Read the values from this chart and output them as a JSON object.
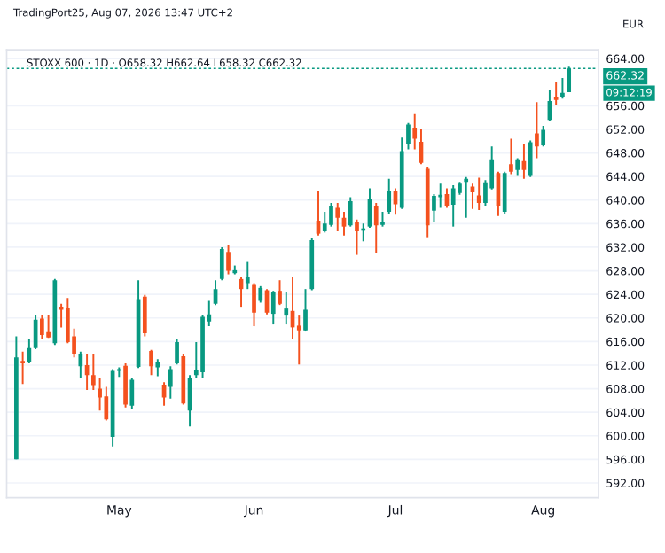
{
  "chart_data": {
    "type": "candlestick",
    "title": "STOXX 600 · 1D · O658.32 H662.64 L658.32 C662.32",
    "subtitle": "TradingPort25, Aug 07, 2026 13:47 UTC+2",
    "annotations": [
      "EUR",
      "09:12:19"
    ],
    "categories": [
      null,
      null,
      null,
      null,
      null,
      null,
      null,
      null,
      null,
      null,
      null,
      null,
      null,
      null,
      null,
      null,
      "May",
      null,
      null,
      null,
      null,
      null,
      null,
      null,
      null,
      null,
      null,
      null,
      null,
      null,
      null,
      null,
      null,
      null,
      null,
      null,
      null,
      "Jun",
      null,
      null,
      null,
      null,
      null,
      null,
      null,
      null,
      null,
      null,
      null,
      null,
      null,
      null,
      null,
      null,
      null,
      null,
      null,
      null,
      null,
      "Jul",
      null,
      null,
      null,
      null,
      null,
      null,
      null,
      null,
      null,
      null,
      null,
      null,
      null,
      null,
      null,
      null,
      null,
      null,
      null,
      null,
      null,
      null,
      "Aug",
      null,
      null,
      null,
      null
    ],
    "ohlc": [
      [
        596.0,
        616.9,
        596.0,
        613.3
      ],
      [
        612.7,
        614.3,
        608.8,
        612.3
      ],
      [
        612.5,
        616.4,
        612.3,
        614.9
      ],
      [
        614.9,
        620.4,
        614.7,
        619.7
      ],
      [
        619.9,
        620.4,
        616.4,
        617.1
      ],
      [
        617.6,
        620.4,
        616.6,
        616.7
      ],
      [
        615.7,
        626.6,
        615.4,
        626.4
      ],
      [
        621.9,
        622.4,
        618.4,
        621.4
      ],
      [
        621.6,
        623.4,
        615.7,
        615.9
      ],
      [
        616.9,
        618.2,
        613.3,
        613.9
      ],
      [
        611.8,
        614.3,
        609.8,
        613.9
      ],
      [
        612.0,
        613.9,
        607.8,
        610.3
      ],
      [
        610.3,
        613.9,
        607.8,
        608.6
      ],
      [
        608.0,
        609.8,
        604.3,
        606.5
      ],
      [
        606.7,
        608.3,
        602.6,
        602.8
      ],
      [
        599.8,
        611.3,
        598.2,
        611.0
      ],
      [
        611.0,
        611.6,
        610.0,
        611.3
      ],
      [
        611.9,
        612.3,
        604.8,
        605.3
      ],
      [
        605.1,
        609.8,
        604.6,
        609.5
      ],
      [
        611.7,
        626.4,
        611.5,
        623.2
      ],
      [
        623.6,
        623.9,
        616.9,
        617.4
      ],
      [
        614.4,
        614.6,
        610.3,
        611.8
      ],
      [
        611.6,
        613.0,
        610.1,
        612.6
      ],
      [
        608.7,
        609.1,
        605.1,
        606.5
      ],
      [
        608.3,
        611.8,
        606.3,
        611.3
      ],
      [
        612.3,
        616.4,
        612.1,
        615.9
      ],
      [
        613.5,
        613.9,
        605.3,
        605.5
      ],
      [
        604.3,
        610.3,
        601.6,
        609.8
      ],
      [
        610.3,
        615.9,
        609.8,
        611.1
      ],
      [
        610.8,
        620.4,
        609.8,
        620.2
      ],
      [
        619.4,
        622.9,
        618.6,
        620.6
      ],
      [
        622.4,
        626.4,
        622.2,
        624.9
      ],
      [
        626.6,
        632.0,
        626.4,
        631.7
      ],
      [
        631.2,
        632.3,
        627.4,
        628.0
      ],
      [
        627.6,
        628.9,
        627.4,
        628.1
      ],
      [
        626.6,
        626.9,
        621.9,
        624.9
      ],
      [
        625.9,
        629.5,
        624.9,
        626.9
      ],
      [
        625.6,
        625.9,
        618.6,
        620.9
      ],
      [
        622.9,
        625.4,
        622.6,
        625.1
      ],
      [
        624.7,
        624.9,
        620.6,
        620.9
      ],
      [
        620.7,
        624.6,
        618.9,
        624.4
      ],
      [
        624.6,
        626.4,
        622.2,
        622.4
      ],
      [
        620.4,
        624.4,
        618.9,
        621.6
      ],
      [
        621.2,
        626.9,
        616.4,
        618.4
      ],
      [
        618.7,
        620.4,
        612.1,
        617.9
      ],
      [
        617.9,
        624.9,
        617.7,
        621.4
      ],
      [
        624.9,
        633.5,
        624.7,
        633.2
      ],
      [
        636.5,
        641.5,
        634.0,
        634.3
      ],
      [
        634.7,
        638.0,
        634.5,
        636.0
      ],
      [
        635.8,
        639.5,
        635.5,
        639.0
      ],
      [
        638.7,
        639.5,
        634.7,
        637.0
      ],
      [
        637.0,
        638.0,
        634.0,
        635.5
      ],
      [
        635.7,
        640.5,
        635.5,
        639.8
      ],
      [
        636.2,
        636.7,
        630.7,
        634.7
      ],
      [
        634.8,
        636.0,
        633.0,
        635.2
      ],
      [
        635.5,
        642.0,
        635.3,
        640.2
      ],
      [
        639.0,
        639.5,
        631.0,
        635.7
      ],
      [
        635.8,
        638.0,
        635.5,
        636.2
      ],
      [
        638.0,
        643.6,
        637.7,
        641.5
      ],
      [
        641.5,
        642.0,
        637.5,
        639.3
      ],
      [
        638.7,
        650.6,
        638.5,
        648.3
      ],
      [
        649.6,
        653.1,
        648.6,
        652.8
      ],
      [
        652.3,
        654.6,
        648.6,
        650.4
      ],
      [
        649.9,
        652.1,
        646.1,
        646.3
      ],
      [
        645.3,
        645.6,
        633.7,
        635.7
      ],
      [
        638.2,
        641.0,
        636.3,
        640.7
      ],
      [
        640.5,
        642.8,
        638.7,
        640.9
      ],
      [
        641.0,
        642.0,
        638.7,
        639.0
      ],
      [
        639.2,
        642.5,
        635.5,
        642.0
      ],
      [
        641.2,
        643.1,
        640.9,
        642.8
      ],
      [
        643.1,
        643.9,
        637.0,
        643.6
      ],
      [
        642.3,
        642.8,
        638.5,
        641.3
      ],
      [
        640.8,
        643.8,
        638.3,
        639.5
      ],
      [
        639.5,
        643.4,
        639.0,
        643.0
      ],
      [
        642.0,
        649.1,
        641.8,
        646.9
      ],
      [
        644.6,
        644.8,
        637.3,
        639.0
      ],
      [
        638.0,
        644.8,
        637.7,
        644.6
      ],
      [
        646.1,
        650.4,
        644.4,
        644.8
      ],
      [
        645.1,
        647.1,
        644.1,
        646.9
      ],
      [
        646.6,
        649.6,
        643.6,
        645.1
      ],
      [
        644.1,
        650.1,
        643.9,
        649.8
      ],
      [
        651.3,
        656.6,
        647.1,
        649.1
      ],
      [
        649.3,
        652.6,
        649.1,
        651.9
      ],
      [
        653.6,
        658.7,
        653.4,
        656.8
      ],
      [
        657.5,
        660.0,
        656.1,
        657.0
      ],
      [
        657.4,
        660.7,
        657.2,
        658.2
      ],
      [
        658.32,
        662.64,
        658.32,
        662.32
      ]
    ],
    "colors": [
      "#089981",
      "#f4511e",
      "#089981",
      "#089981",
      "#f4511e",
      "#f4511e",
      "#089981",
      "#f4511e",
      "#f4511e",
      "#f4511e",
      "#089981",
      "#f4511e",
      "#f4511e",
      "#f4511e",
      "#f4511e",
      "#089981",
      "#089981",
      "#f4511e",
      "#089981",
      "#089981",
      "#f4511e",
      "#f4511e",
      "#089981",
      "#f4511e",
      "#089981",
      "#089981",
      "#f4511e",
      "#089981",
      "#089981",
      "#089981",
      "#089981",
      "#089981",
      "#089981",
      "#f4511e",
      "#089981",
      "#f4511e",
      "#089981",
      "#f4511e",
      "#089981",
      "#f4511e",
      "#089981",
      "#f4511e",
      "#089981",
      "#f4511e",
      "#f4511e",
      "#089981",
      "#089981",
      "#f4511e",
      "#089981",
      "#089981",
      "#f4511e",
      "#f4511e",
      "#089981",
      "#f4511e",
      "#089981",
      "#089981",
      "#f4511e",
      "#089981",
      "#089981",
      "#f4511e",
      "#089981",
      "#089981",
      "#f4511e",
      "#f4511e",
      "#f4511e",
      "#089981",
      "#089981",
      "#f4511e",
      "#089981",
      "#089981",
      "#089981",
      "#f4511e",
      "#f4511e",
      "#089981",
      "#089981",
      "#f4511e",
      "#089981",
      "#f4511e",
      "#089981",
      "#f4511e",
      "#089981",
      "#f4511e",
      "#089981",
      "#089981",
      "#f4511e",
      "#089981",
      "#089981"
    ],
    "ylim": [
      589.5,
      665.5
    ],
    "yticks": [
      {
        "value": 592,
        "label": "592.00"
      },
      {
        "value": 596,
        "label": "596.00"
      },
      {
        "value": 600,
        "label": "600.00"
      },
      {
        "value": 604,
        "label": "604.00"
      },
      {
        "value": 608,
        "label": "608.00"
      },
      {
        "value": 612,
        "label": "612.00"
      },
      {
        "value": 616,
        "label": "616.00"
      },
      {
        "value": 620,
        "label": "620.00"
      },
      {
        "value": 624,
        "label": "624.00"
      },
      {
        "value": 628,
        "label": "628.00"
      },
      {
        "value": 632,
        "label": "632.00"
      },
      {
        "value": 636,
        "label": "636.00"
      },
      {
        "value": 640,
        "label": "640.00"
      },
      {
        "value": 644,
        "label": "644.00"
      },
      {
        "value": 648,
        "label": "648.00"
      },
      {
        "value": 652,
        "label": "652.00"
      },
      {
        "value": 656,
        "label": "656.00"
      },
      {
        "value": 664,
        "label": "664.00"
      }
    ],
    "ref_lines": [
      {
        "axis": "y",
        "value": 662.32,
        "label": "662.32",
        "color": "#089981",
        "line_style": "dashed"
      }
    ],
    "grid": "y"
  }
}
